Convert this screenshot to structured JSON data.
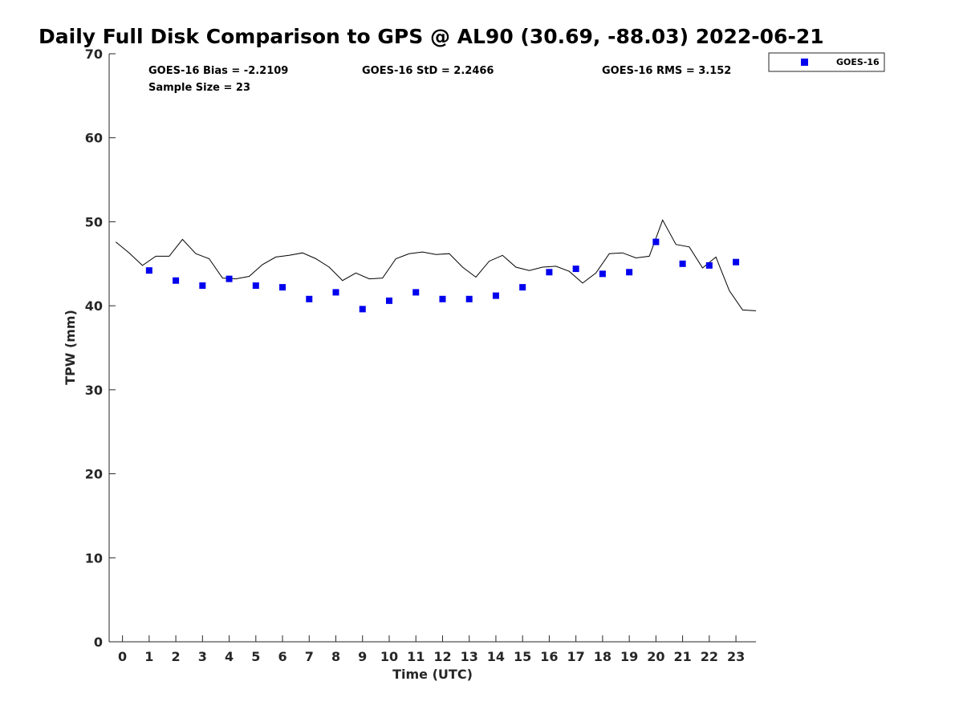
{
  "chart_data": {
    "type": "scatter",
    "title": "Daily Full Disk Comparison to GPS @ AL90 (30.69, -88.03) 2022-06-21",
    "xlabel": "Time (UTC)",
    "ylabel": "TPW (mm)",
    "xlim": [
      -0.5,
      23.75
    ],
    "ylim": [
      0,
      70
    ],
    "x_ticks": [
      "0",
      "1",
      "2",
      "3",
      "4",
      "5",
      "6",
      "7",
      "8",
      "9",
      "10",
      "11",
      "12",
      "13",
      "14",
      "15",
      "16",
      "17",
      "18",
      "19",
      "20",
      "21",
      "22",
      "23"
    ],
    "y_ticks": [
      "0",
      "10",
      "20",
      "30",
      "40",
      "50",
      "60",
      "70"
    ],
    "grid": false,
    "legend_position": "top-right",
    "stats": {
      "bias": "GOES-16 Bias = -2.2109",
      "std": "GOES-16 StD = 2.2466",
      "rms": "GOES-16 RMS = 3.152",
      "sample": "Sample Size = 23"
    },
    "series": [
      {
        "name": "GOES-16",
        "kind": "scatter",
        "marker": "square",
        "color": "#0000ee",
        "x": [
          1,
          2,
          3,
          4,
          5,
          6,
          7,
          8,
          9,
          10,
          11,
          12,
          13,
          14,
          15,
          16,
          17,
          18,
          19,
          20,
          21,
          22,
          23
        ],
        "y": [
          44.2,
          43.0,
          42.4,
          43.2,
          42.4,
          42.2,
          40.8,
          41.6,
          39.6,
          40.6,
          41.6,
          40.8,
          40.8,
          41.2,
          42.2,
          44.0,
          44.4,
          43.8,
          44.0,
          47.6,
          45.0,
          44.8,
          45.2
        ]
      },
      {
        "kind": "line",
        "color": "#000000",
        "x": [
          -0.25,
          0.25,
          0.75,
          1.25,
          1.75,
          2.25,
          2.75,
          3.25,
          3.75,
          4.25,
          4.75,
          5.25,
          5.75,
          6.25,
          6.75,
          7.25,
          7.75,
          8.25,
          8.75,
          9.25,
          9.75,
          10.25,
          10.75,
          11.25,
          11.75,
          12.25,
          12.75,
          13.25,
          13.75,
          14.25,
          14.75,
          15.25,
          15.75,
          16.25,
          16.75,
          17.25,
          17.75,
          18.25,
          18.75,
          19.25,
          19.75,
          20.25,
          20.75,
          21.25,
          21.75,
          22.25,
          22.75,
          23.25,
          23.75
        ],
        "y": [
          47.6,
          46.3,
          44.8,
          45.9,
          45.9,
          47.9,
          46.2,
          45.6,
          43.3,
          43.2,
          43.5,
          44.9,
          45.8,
          46.0,
          46.3,
          45.6,
          44.6,
          43.0,
          43.9,
          43.2,
          43.3,
          45.6,
          46.2,
          46.4,
          46.1,
          46.2,
          44.6,
          43.4,
          45.3,
          46.0,
          44.6,
          44.2,
          44.6,
          44.7,
          44.1,
          42.7,
          43.9,
          46.2,
          46.3,
          45.7,
          45.9,
          50.2,
          47.3,
          47.0,
          44.5,
          45.8,
          41.8,
          39.5,
          39.4
        ]
      }
    ]
  }
}
